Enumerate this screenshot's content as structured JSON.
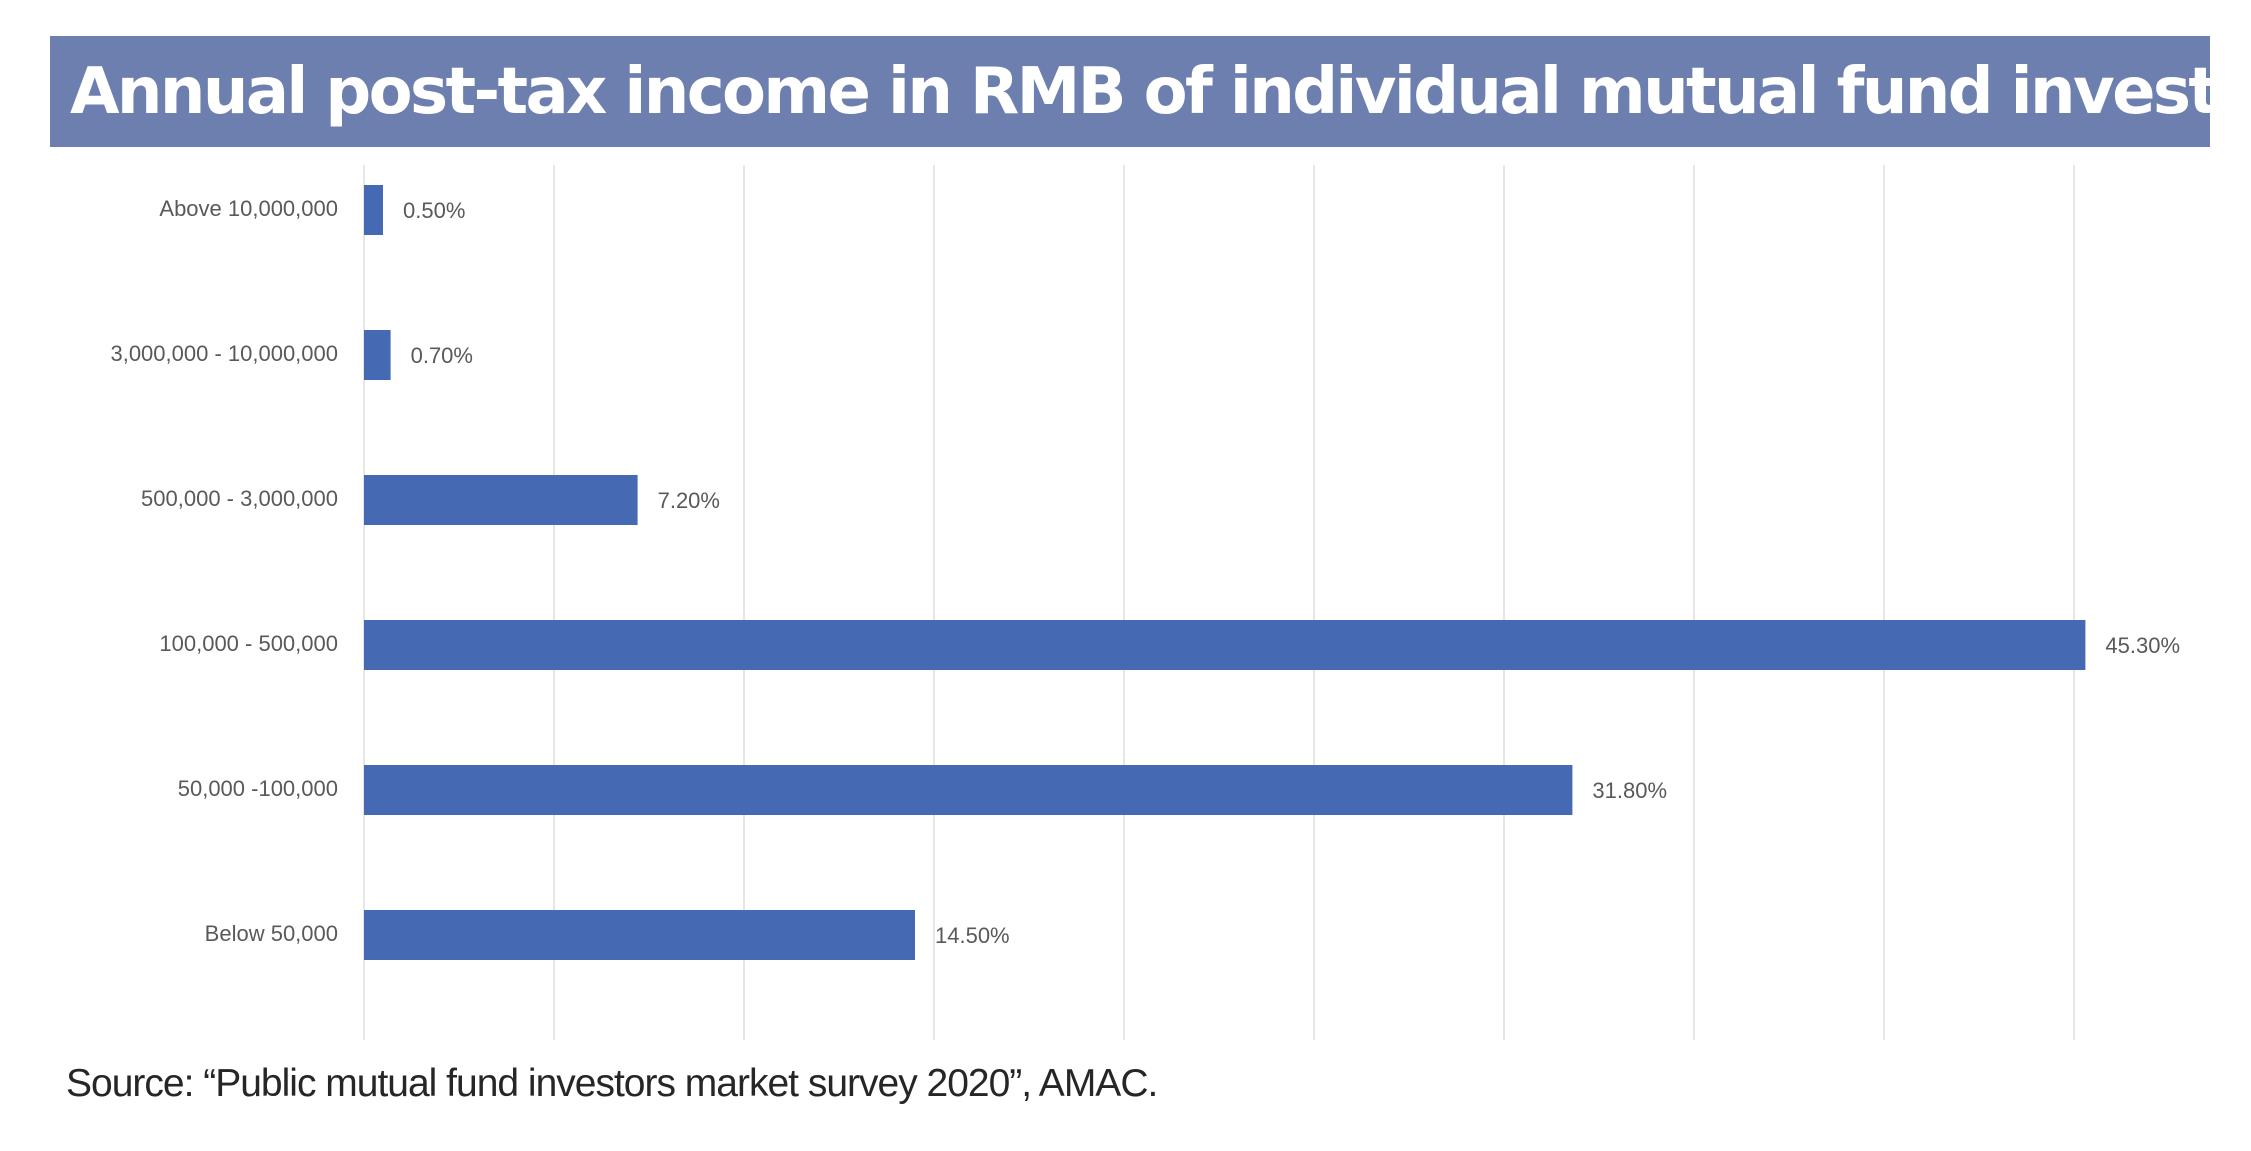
{
  "chart_data": {
    "type": "bar",
    "orientation": "horizontal",
    "title": "Annual post-tax income in RMB of individual mutual fund investors",
    "categories": [
      "Above 10,000,000",
      "3,000,000 - 10,000,000",
      "500,000 - 3,000,000",
      "100,000 - 500,000",
      "50,000 -100,000",
      "Below 50,000"
    ],
    "values": [
      0.5,
      0.7,
      7.2,
      45.3,
      31.8,
      14.5
    ],
    "data_labels": [
      "0.50%",
      "0.70%",
      "7.20%",
      "45.30%",
      "31.80%",
      "14.50%"
    ],
    "value_unit": "%",
    "xlim": [
      0,
      45
    ],
    "x_gridline_step": 5,
    "x_tick_labels_shown": false,
    "grid": "vertical",
    "legend": "none",
    "bar_color": "#4569b3",
    "gridline_color": "#e6e6e6"
  },
  "title_banner_color": "#6d7fae",
  "source": "Source: “Public mutual fund investors market survey 2020”, AMAC."
}
